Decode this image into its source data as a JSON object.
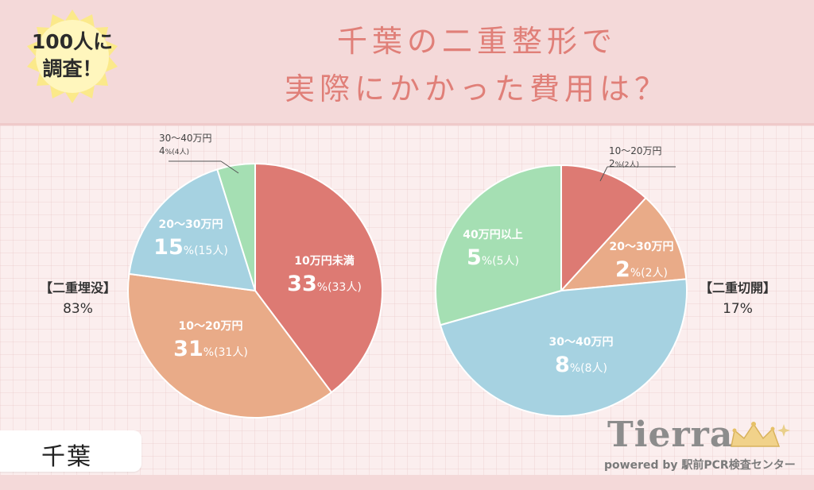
{
  "badge": {
    "line1": "100人に",
    "line2": "調査！"
  },
  "title": {
    "line1": "千葉の二重整形で",
    "line2": "実際にかかった費用は？"
  },
  "left_category": {
    "label": "【二重埋没】",
    "percent": "83%"
  },
  "right_category": {
    "label": "【二重切開】",
    "percent": "17%"
  },
  "region": "千葉",
  "logo": {
    "name": "Tierra",
    "tagline": "powered by 駅前PCR検査センター"
  },
  "colors": {
    "red": "#dd7a73",
    "orange": "#e9ab88",
    "blue": "#a6d2e1",
    "green": "#a5dfb3",
    "title": "#e07f78"
  },
  "chart_data": [
    {
      "type": "pie",
      "title": "【二重埋没】83%",
      "slices": [
        {
          "label": "10万円未満",
          "value": 33,
          "display": "33",
          "count": "(33人)",
          "color": "#dd7a73"
        },
        {
          "label": "10〜20万円",
          "value": 31,
          "display": "31",
          "count": "(31人)",
          "color": "#e9ab88"
        },
        {
          "label": "20〜30万円",
          "value": 15,
          "display": "15",
          "count": "(15人)",
          "color": "#a6d2e1"
        },
        {
          "label": "30〜40万円",
          "value": 4,
          "display": "4",
          "count": "(4人)",
          "color": "#a5dfb3"
        }
      ]
    },
    {
      "type": "pie",
      "title": "【二重切開】17%",
      "slices": [
        {
          "label": "10〜20万円",
          "value": 2,
          "display": "2",
          "count": "(2人)",
          "color": "#dd7a73"
        },
        {
          "label": "20〜30万円",
          "value": 2,
          "display": "2",
          "count": "(2人)",
          "color": "#e9ab88"
        },
        {
          "label": "30〜40万円",
          "value": 8,
          "display": "8",
          "count": "(8人)",
          "color": "#a6d2e1"
        },
        {
          "label": "40万円以上",
          "value": 5,
          "display": "5",
          "count": "(5人)",
          "color": "#a5dfb3"
        }
      ]
    }
  ]
}
